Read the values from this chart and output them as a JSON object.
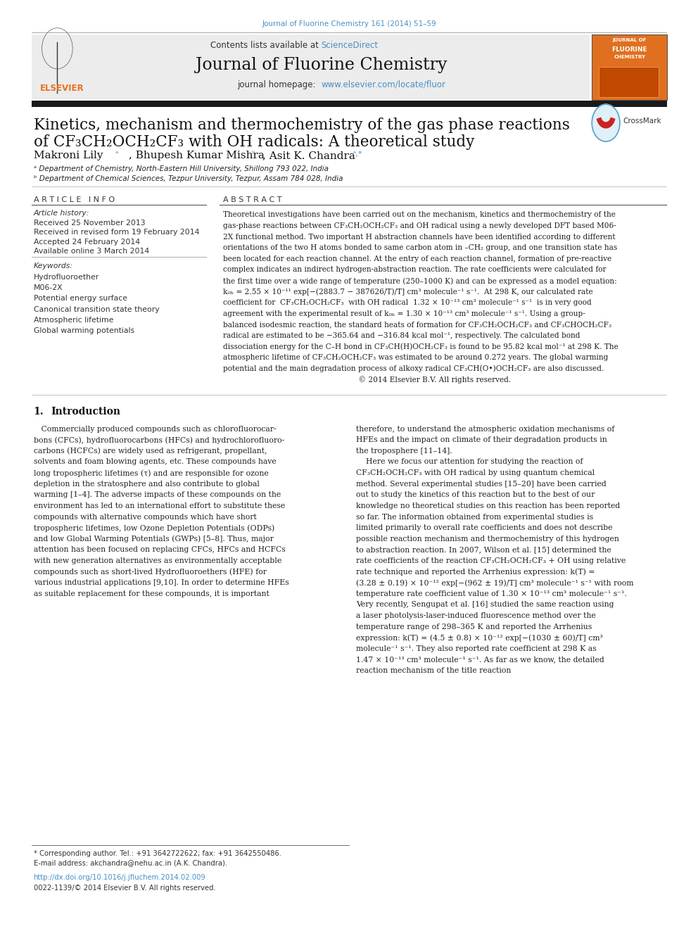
{
  "page_bg": "#ffffff",
  "journal_line": "Journal of Fluorine Chemistry 161 (2014) 51–59",
  "journal_line_color": "#4a90c4",
  "header_bg": "#ececec",
  "journal_name": "Journal of Fluorine Chemistry",
  "journal_homepage_url": "www.elsevier.com/locate/fluor",
  "journal_homepage_color": "#4a90c4",
  "title_line1": "Kinetics, mechanism and thermochemistry of the gas phase reactions",
  "title_line2": "of CF₃CH₂OCH₂CF₃ with OH radicals: A theoretical study",
  "title_fontsize": 15.5,
  "affil_a": "ᵃ Department of Chemistry, North-Eastern Hill University, Shillong 793 022, India",
  "affil_b": "ᵇ Department of Chemical Sciences, Tezpur University, Tezpur, Assam 784 028, India",
  "article_info_header": "A R T I C L E   I N F O",
  "article_history_header": "Article history:",
  "received": "Received 25 November 2013",
  "revised": "Received in revised form 19 February 2014",
  "accepted": "Accepted 24 February 2014",
  "online": "Available online 3 March 2014",
  "keywords_header": "Keywords:",
  "keywords": [
    "Hydrofluoroether",
    "M06-2X",
    "Potential energy surface",
    "Canonical transition state theory",
    "Atmospheric lifetime",
    "Global warming potentials"
  ],
  "abstract_header": "A B S T R A C T",
  "footer_line1": "* Corresponding author. Tel.: +91 3642722622; fax: +91 3642550486.",
  "footer_line2": "E-mail address: akchandra@nehu.ac.in (A.K. Chandra).",
  "footer_doi": "http://dx.doi.org/10.1016/j.jfluchem.2014.02.009",
  "footer_issn": "0022-1139/© 2014 Elsevier B.V. All rights reserved."
}
